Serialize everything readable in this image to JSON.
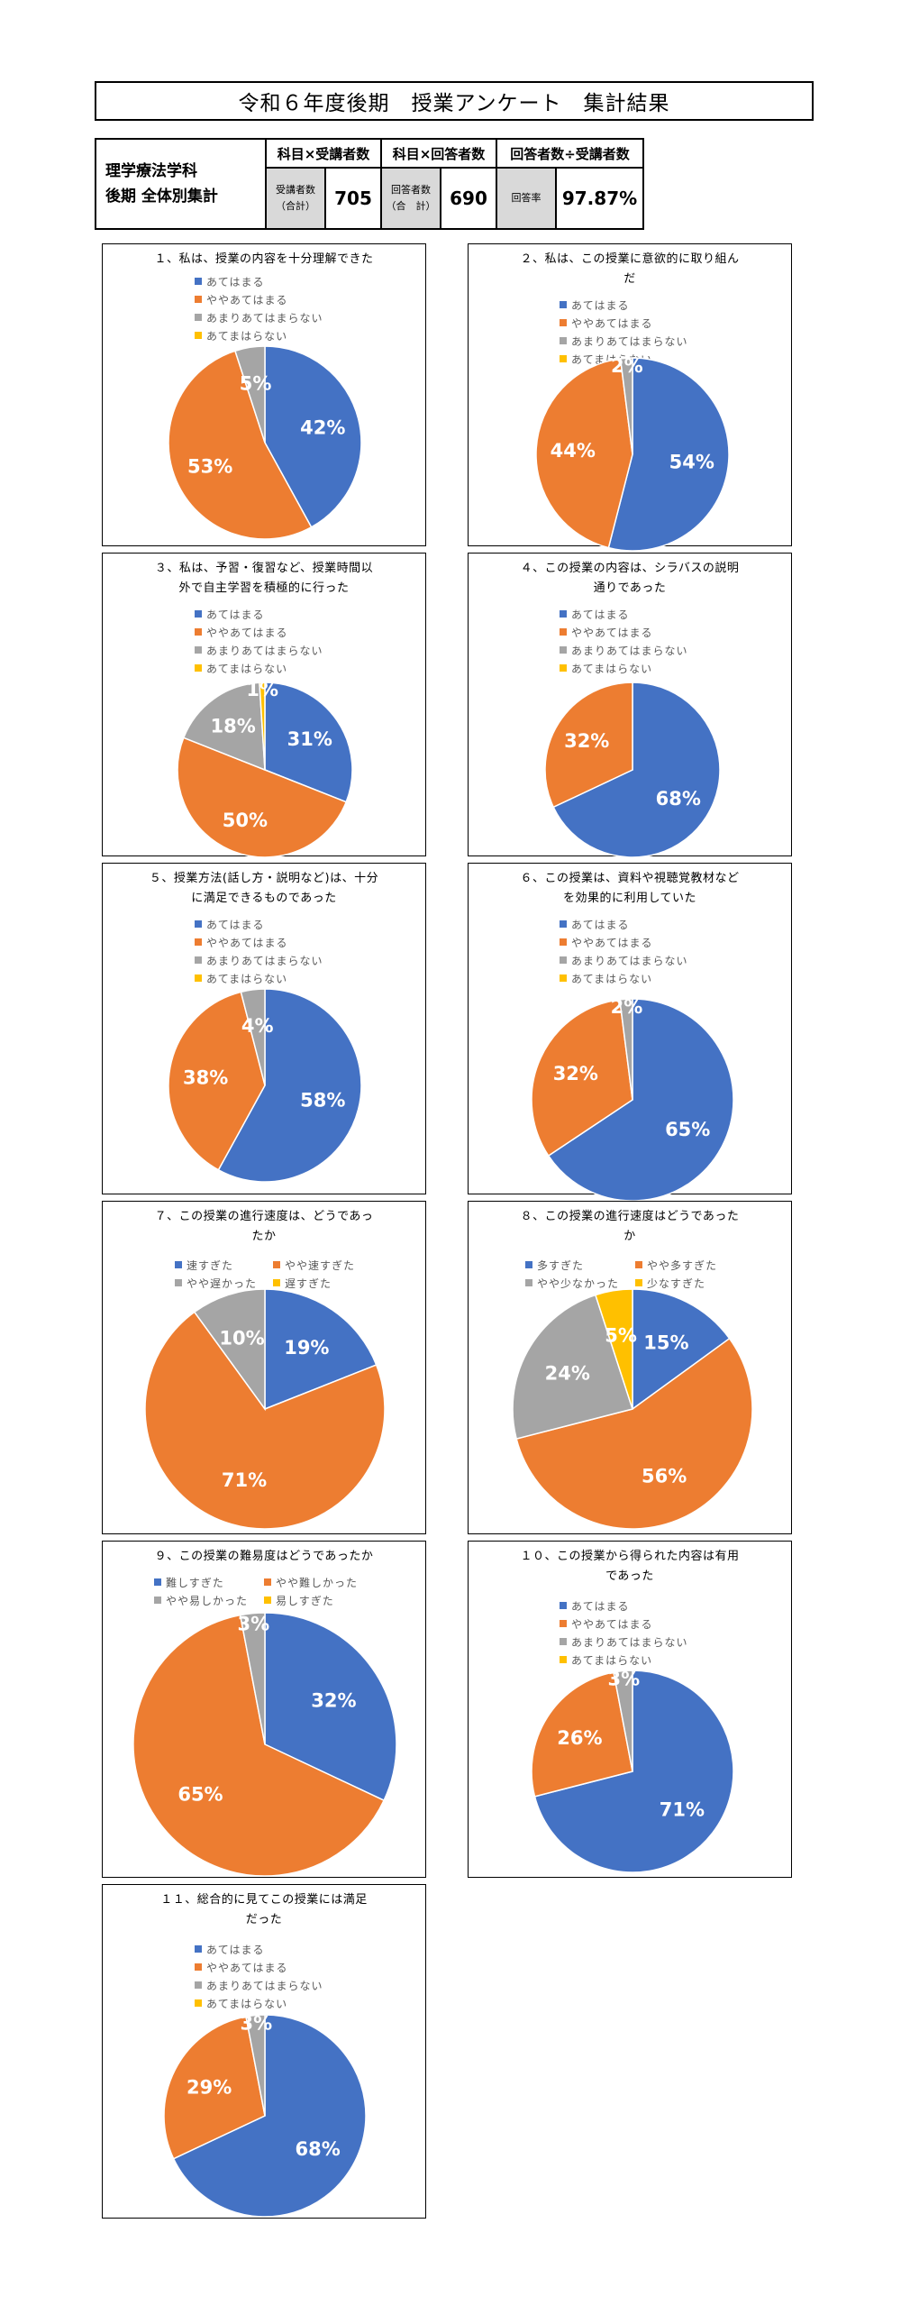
{
  "header": {
    "title": "令和６年度後期　授業アンケート　集計結果"
  },
  "summary": {
    "dept_line1": "理学療法学科",
    "dept_line2": "後期 全体別集計",
    "col1_header": "科目×受講者数",
    "col2_header": "科目×回答者数",
    "col3_header": "回答者数÷受講者数",
    "col1_label_a": "受講者数",
    "col1_label_b": "（合計）",
    "col1_value": "705",
    "col2_label_a": "回答者数",
    "col2_label_b": "（合　計）",
    "col2_value": "690",
    "col3_label": "回答率",
    "col3_value": "97.87%"
  },
  "colors": {
    "blue": "#4472C4",
    "orange": "#ED7D31",
    "gray": "#A5A5A5",
    "yellow": "#FFC000"
  },
  "chart_data": [
    {
      "type": "pie",
      "title": "１、私は、授業の内容を十分理解できた",
      "categories": [
        "あてはまる",
        "ややあてはまる",
        "あまりあてはまらない",
        "あてまはらない"
      ],
      "values": [
        42,
        53,
        5,
        0
      ],
      "labels": [
        "42%",
        "53%",
        "5%",
        ""
      ]
    },
    {
      "type": "pie",
      "title": "２、私は、この授業に意欲的に取り組ん\nだ",
      "categories": [
        "あてはまる",
        "ややあてはまる",
        "あまりあてはまらない",
        "あてまはらない"
      ],
      "values": [
        54,
        44,
        2,
        0
      ],
      "labels": [
        "54%",
        "44%",
        "2%",
        ""
      ]
    },
    {
      "type": "pie",
      "title": "３、私は、予習・復習など、授業時間以\n外で自主学習を積極的に行った",
      "categories": [
        "あてはまる",
        "ややあてはまる",
        "あまりあてはまらない",
        "あてまはらない"
      ],
      "values": [
        31,
        50,
        18,
        1
      ],
      "labels": [
        "31%",
        "50%",
        "18%",
        "1%"
      ]
    },
    {
      "type": "pie",
      "title": "４、この授業の内容は、シラバスの説明\n通りであった",
      "categories": [
        "あてはまる",
        "ややあてはまる",
        "あまりあてはまらない",
        "あてまはらない"
      ],
      "values": [
        68,
        32,
        0,
        0
      ],
      "labels": [
        "68%",
        "32%",
        "",
        ""
      ]
    },
    {
      "type": "pie",
      "title": "５、授業方法(話し方・説明など)は、十分\nに満足できるものであった",
      "categories": [
        "あてはまる",
        "ややあてはまる",
        "あまりあてはまらない",
        "あてまはらない"
      ],
      "values": [
        58,
        38,
        4,
        0
      ],
      "labels": [
        "58%",
        "38%",
        "4%",
        ""
      ]
    },
    {
      "type": "pie",
      "title": "６、この授業は、資料や視聴覚教材など\nを効果的に利用していた",
      "categories": [
        "あてはまる",
        "ややあてはまる",
        "あまりあてはまらない",
        "あてまはらない"
      ],
      "values": [
        65,
        32,
        2,
        0
      ],
      "labels": [
        "65%",
        "32%",
        "2%",
        ""
      ]
    },
    {
      "type": "pie",
      "title": "７、この授業の進行速度は、どうであっ\nたか",
      "categories": [
        "速すぎた",
        "やや速すぎた",
        "やや遅かった",
        "遅すぎた"
      ],
      "values": [
        19,
        71,
        10,
        0
      ],
      "labels": [
        "19%",
        "71%",
        "10%",
        ""
      ]
    },
    {
      "type": "pie",
      "title": "８、この授業の進行速度はどうであった\nか",
      "categories": [
        "多すぎた",
        "やや多すぎた",
        "やや少なかった",
        "少なすぎた"
      ],
      "values": [
        15,
        56,
        24,
        5
      ],
      "labels": [
        "15%",
        "56%",
        "24%",
        "5%"
      ]
    },
    {
      "type": "pie",
      "title": "９、この授業の難易度はどうであったか",
      "categories": [
        "難しすぎた",
        "やや難しかった",
        "やや易しかった",
        "易しすぎた"
      ],
      "values": [
        32,
        65,
        3,
        0
      ],
      "labels": [
        "32%",
        "65%",
        "3%",
        ""
      ]
    },
    {
      "type": "pie",
      "title": "１０、この授業から得られた内容は有用\nであった",
      "categories": [
        "あてはまる",
        "ややあてはまる",
        "あまりあてはまらない",
        "あてまはらない"
      ],
      "values": [
        71,
        26,
        3,
        0
      ],
      "labels": [
        "71%",
        "26%",
        "3%",
        ""
      ]
    },
    {
      "type": "pie",
      "title": "１１、総合的に見てこの授業には満足\nだった",
      "categories": [
        "あてはまる",
        "ややあてはまる",
        "あまりあてはまらない",
        "あてまはらない"
      ],
      "values": [
        68,
        29,
        3,
        0
      ],
      "labels": [
        "68%",
        "29%",
        "3%",
        ""
      ]
    }
  ]
}
